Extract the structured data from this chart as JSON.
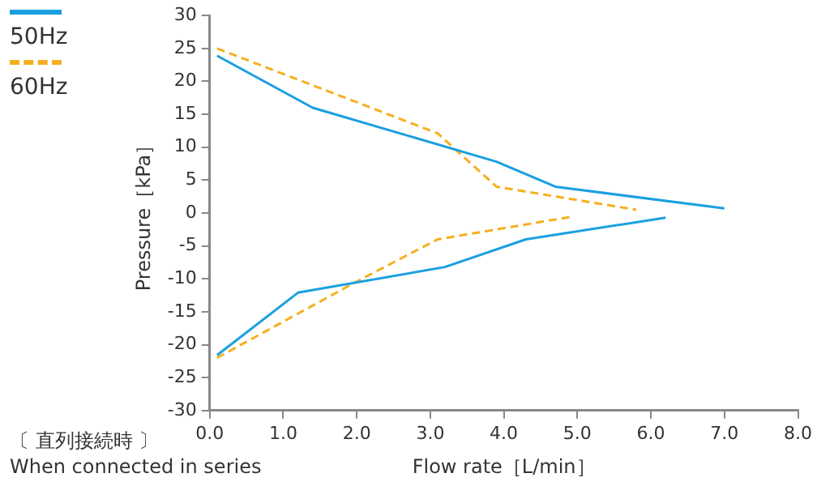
{
  "chart_data": {
    "type": "line",
    "xlabel": "Flow rate［L/min］",
    "ylabel": "Pressure［kPa］",
    "annotations": [
      "〔 直列接続時 〕",
      "When connected in series"
    ],
    "series": [
      {
        "name": "50Hz",
        "color": "#1aa0e0",
        "line_style": "solid",
        "x": [
          0.1,
          1.4,
          3.9,
          4.7,
          7.0
        ],
        "values": [
          23.9,
          16,
          7.8,
          4,
          0.7
        ]
      },
      {
        "color": "#1aa0e0",
        "line_style": "solid",
        "x": [
          0.1,
          1.2,
          3.2,
          4.3,
          6.2
        ],
        "values": [
          -21.6,
          -12.1,
          -8.2,
          -4,
          -0.7
        ]
      },
      {
        "name": "60Hz",
        "color": "#f5b020",
        "line_style": "dashed",
        "x": [
          0.1,
          3.1,
          3.9,
          5.8
        ],
        "values": [
          25,
          12.1,
          4,
          0.5
        ]
      },
      {
        "color": "#f5b020",
        "line_style": "dashed",
        "x": [
          0.1,
          2.0,
          3.1,
          4.9
        ],
        "values": [
          -22,
          -10.4,
          -4,
          -0.6
        ]
      }
    ],
    "xlim": [
      0,
      8
    ],
    "xticks": [
      {
        "value": 0,
        "label": "0.0"
      },
      {
        "value": 1,
        "label": "1.0"
      },
      {
        "value": 2,
        "label": "2.0"
      },
      {
        "value": 3,
        "label": "3.0"
      },
      {
        "value": 4,
        "label": "4.0"
      },
      {
        "value": 5,
        "label": "5.0"
      },
      {
        "value": 6,
        "label": "6.0"
      },
      {
        "value": 7,
        "label": "7.0"
      },
      {
        "value": 8,
        "label": "8.0"
      }
    ],
    "ylim": [
      -30,
      30
    ],
    "yticks": [
      -30,
      -25,
      -20,
      -15,
      -10,
      -5,
      0,
      5,
      10,
      15,
      20,
      25,
      30
    ],
    "grid": false,
    "legend": "left",
    "marker": "none"
  }
}
